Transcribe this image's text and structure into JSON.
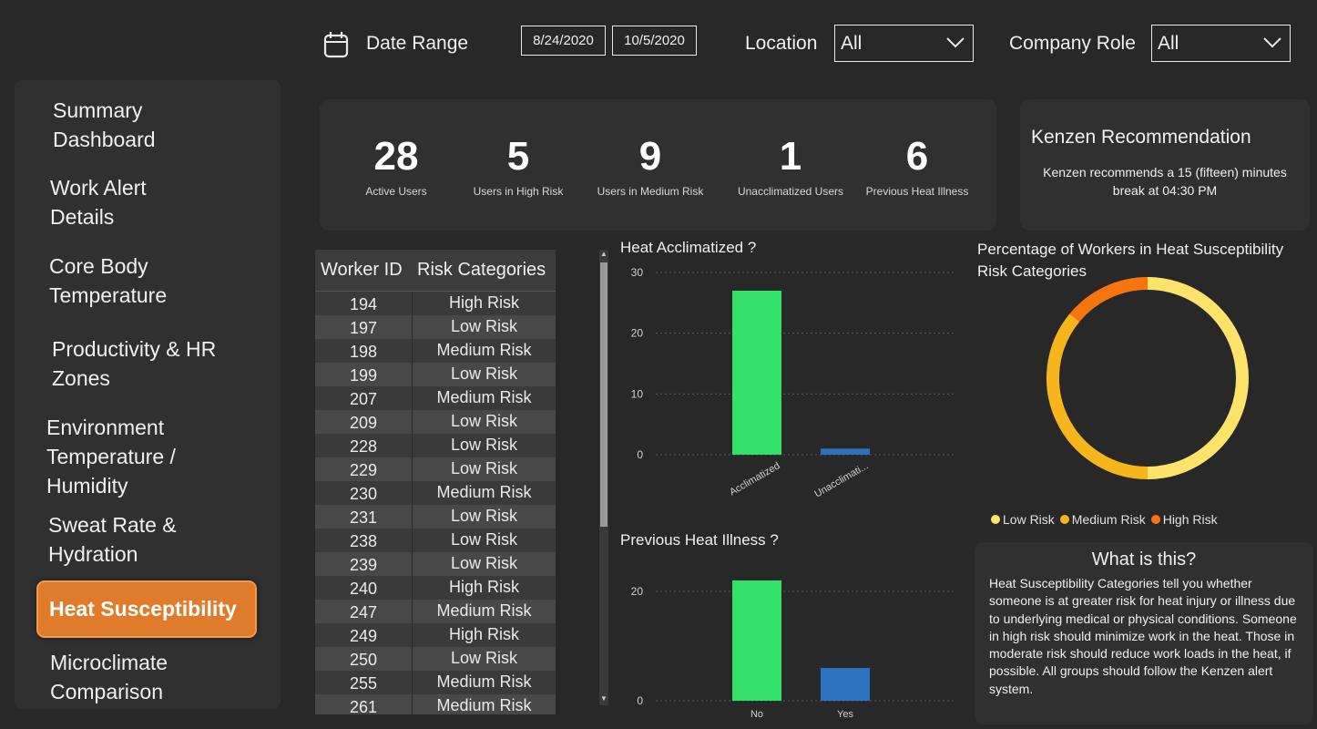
{
  "filters": {
    "date_label": "Date Range",
    "date_start": "8/24/2020",
    "date_end": "10/5/2020",
    "location_label": "Location",
    "location_value": "All",
    "role_label": "Company Role",
    "role_value": "All"
  },
  "sidebar": {
    "items": [
      {
        "line1": "Summary",
        "line2": "Dashboard"
      },
      {
        "line1": "Work Alert",
        "line2": "Details"
      },
      {
        "line1": "Core Body",
        "line2": "Temperature"
      },
      {
        "line1": "Productivity & HR",
        "line2": "Zones"
      },
      {
        "line1": "Environment",
        "line2": "Temperature /",
        "line3": "Humidity"
      },
      {
        "line1": "Sweat Rate &",
        "line2": "Hydration"
      },
      {
        "line1": "Heat Susceptibility"
      },
      {
        "line1": "Microclimate",
        "line2": "Comparison"
      }
    ]
  },
  "kpis": [
    {
      "value": "28",
      "label": "Active Users"
    },
    {
      "value": "5",
      "label": "Users in High Risk"
    },
    {
      "value": "9",
      "label": "Users in Medium Risk"
    },
    {
      "value": "1",
      "label": "Unacclimatized Users"
    },
    {
      "value": "6",
      "label": "Previous Heat Illness"
    }
  ],
  "recommendation": {
    "title": "Kenzen Recommendation",
    "line1": "Kenzen recommends a 15 (fifteen) minutes",
    "line2": "break at 04:30 PM"
  },
  "table": {
    "col1": "Worker ID",
    "col2": "Risk Categories",
    "rows": [
      [
        "194",
        "High Risk"
      ],
      [
        "197",
        "Low Risk"
      ],
      [
        "198",
        "Medium Risk"
      ],
      [
        "199",
        "Low Risk"
      ],
      [
        "207",
        "Medium Risk"
      ],
      [
        "209",
        "Low Risk"
      ],
      [
        "228",
        "Low Risk"
      ],
      [
        "229",
        "Low Risk"
      ],
      [
        "230",
        "Medium Risk"
      ],
      [
        "231",
        "Low Risk"
      ],
      [
        "238",
        "Low Risk"
      ],
      [
        "239",
        "Low Risk"
      ],
      [
        "240",
        "High Risk"
      ],
      [
        "247",
        "Medium Risk"
      ],
      [
        "249",
        "High Risk"
      ],
      [
        "250",
        "Low Risk"
      ],
      [
        "255",
        "Medium Risk"
      ],
      [
        "261",
        "Medium Risk"
      ]
    ]
  },
  "chart_data": [
    {
      "type": "bar",
      "title": "Heat Acclimatized ?",
      "categories": [
        "Acclimatized",
        "Unacclimati..."
      ],
      "values": [
        27,
        1
      ],
      "colors": [
        "#33e069",
        "#2b73c0"
      ],
      "ylim": [
        0,
        30
      ],
      "yticks": [
        "0",
        "10",
        "20",
        "30"
      ],
      "grid": true
    },
    {
      "type": "bar",
      "title": "Previous Heat Illness ?",
      "categories": [
        "No",
        "Yes"
      ],
      "values": [
        22,
        6
      ],
      "colors": [
        "#33e069",
        "#2b73c0"
      ],
      "ylim": [
        0,
        24
      ],
      "yticks": [
        "0",
        "20"
      ],
      "grid": true
    },
    {
      "type": "pie",
      "title_line1": "Percentage of Workers in Heat Susceptibility",
      "title_line2": "Risk Categories",
      "categories": [
        "Low Risk",
        "Medium Risk",
        "High Risk"
      ],
      "values": [
        50,
        36,
        14
      ],
      "colors": [
        "#fde36a",
        "#f6b51b",
        "#f7740f"
      ],
      "legend": "bottom"
    }
  ],
  "info": {
    "title": "What is this?",
    "lines": [
      "Heat Susceptibility Categories tell you whether",
      "someone is at greater risk for heat injury or illness due",
      "to underlying medical or physical conditions. Someone",
      "in high risk should minimize work in the heat. Those in",
      "moderate risk should reduce work loads in the heat, if",
      "possible. All groups should follow the Kenzen alert",
      "system."
    ]
  }
}
